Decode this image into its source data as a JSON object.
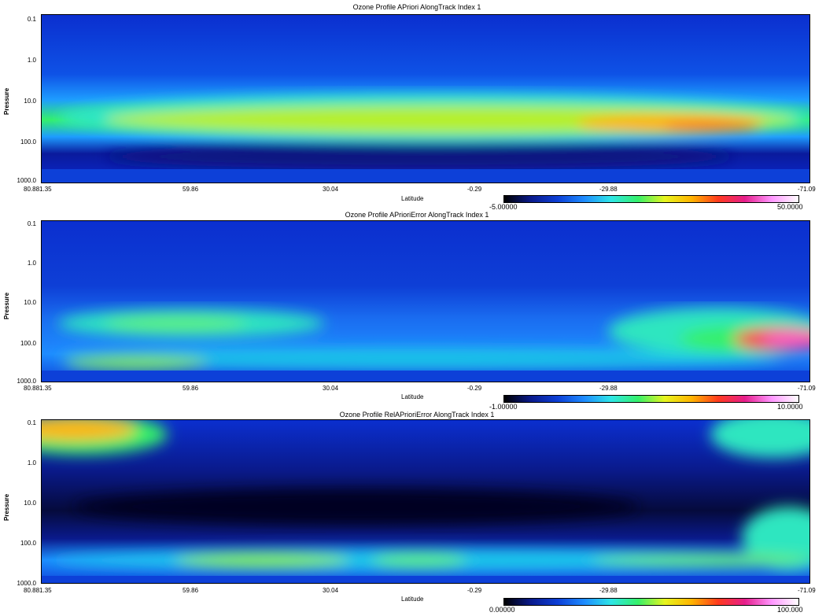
{
  "chart_data": [
    {
      "type": "heatmap",
      "title": "Ozone Profile  APriori AlongTrack Index 1",
      "xlabel": "Latitude",
      "ylabel": "Pressure",
      "x_ticks": [
        "80.881.35",
        "59.86",
        "30.04",
        "-0.29",
        "-29.88",
        "-71.09"
      ],
      "y_ticks": [
        "0.1",
        "1.0",
        "10.0",
        "100.0",
        "1000.0"
      ],
      "y_scale": "log",
      "colorbar": {
        "min": "-5.00000",
        "max": "50.0000"
      }
    },
    {
      "type": "heatmap",
      "title": "Ozone Profile  APrioriError AlongTrack Index 1",
      "xlabel": "Latitude",
      "ylabel": "Pressure",
      "x_ticks": [
        "80.881.35",
        "59.86",
        "30.04",
        "-0.29",
        "-29.88",
        "-71.09"
      ],
      "y_ticks": [
        "0.1",
        "1.0",
        "10.0",
        "100.0",
        "1000.0"
      ],
      "y_scale": "log",
      "colorbar": {
        "min": "-1.00000",
        "max": "10.0000"
      }
    },
    {
      "type": "heatmap",
      "title": "Ozone Profile  RelAPrioriError AlongTrack Index 1",
      "xlabel": "Latitude",
      "ylabel": "Pressure",
      "x_ticks": [
        "80.881.35",
        "59.86",
        "30.04",
        "-0.29",
        "-29.88",
        "-71.09"
      ],
      "y_ticks": [
        "0.1",
        "1.0",
        "10.0",
        "100.0",
        "1000.0"
      ],
      "y_scale": "log",
      "colorbar": {
        "min": "0.00000",
        "max": "100.000"
      }
    }
  ],
  "colors": {
    "colormap": [
      "#000000",
      "#0a1a8c",
      "#0d3fd6",
      "#1e8cff",
      "#2ee6e6",
      "#35f06a",
      "#e6f51e",
      "#ffb400",
      "#ff3a1e",
      "#e61e8c",
      "#ff96ff",
      "#ffffff"
    ],
    "background": "#0b2fcf"
  }
}
